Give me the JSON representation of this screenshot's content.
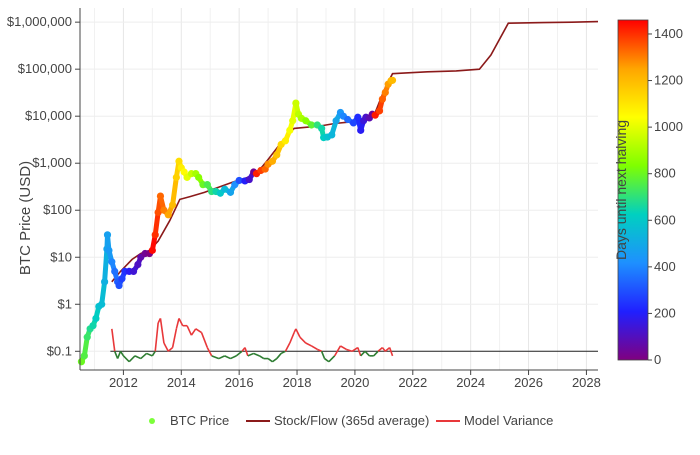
{
  "chart_data": {
    "type": "scatter",
    "title": "",
    "xlabel": "",
    "ylabel": "BTC Price (USD)",
    "y_scale": "log",
    "ylim": [
      0.04,
      2000000
    ],
    "xlim": [
      2010.5,
      2028.4
    ],
    "x_ticks": [
      2012,
      2014,
      2016,
      2018,
      2020,
      2022,
      2024,
      2026,
      2028
    ],
    "x_tick_labels": [
      "2012",
      "2014",
      "2016",
      "2018",
      "2020",
      "2022",
      "2024",
      "2026",
      "2028"
    ],
    "y_ticks": [
      0.1,
      1,
      10,
      100,
      1000,
      10000,
      100000,
      1000000
    ],
    "y_tick_labels": [
      "$0.1",
      "$1",
      "$10",
      "$100",
      "$1,000",
      "$10,000",
      "$100,000",
      "$1,000,000"
    ],
    "grid": true,
    "legend": {
      "position": "bottom-center",
      "entries": [
        "BTC Price",
        "Stock/Flow (365d average)",
        "Model Variance"
      ]
    },
    "colorbar": {
      "label": "Days until next halving",
      "range": [
        0,
        1460
      ],
      "ticks": [
        0,
        200,
        400,
        600,
        800,
        1000,
        1200,
        1400
      ],
      "tick_labels": [
        "0",
        "200",
        "400",
        "600",
        "800",
        "1000",
        "1200",
        "1400"
      ],
      "colors": [
        "#800080",
        "#2020ff",
        "#1e90ff",
        "#00d0c0",
        "#7fff00",
        "#ffff00",
        "#ffa500",
        "#ff0000"
      ]
    },
    "series": [
      {
        "name": "BTC Price",
        "kind": "scatter",
        "color_by": "days_until_next_halving",
        "points": [
          [
            2010.55,
            0.06,
            800
          ],
          [
            2010.65,
            0.08,
            760
          ],
          [
            2010.75,
            0.2,
            720
          ],
          [
            2010.85,
            0.3,
            680
          ],
          [
            2010.95,
            0.35,
            650
          ],
          [
            2011.05,
            0.5,
            620
          ],
          [
            2011.15,
            0.9,
            580
          ],
          [
            2011.25,
            1.0,
            560
          ],
          [
            2011.35,
            3,
            520
          ],
          [
            2011.43,
            15,
            480
          ],
          [
            2011.45,
            30,
            470
          ],
          [
            2011.5,
            14,
            450
          ],
          [
            2011.6,
            8,
            400
          ],
          [
            2011.7,
            5,
            360
          ],
          [
            2011.8,
            3,
            320
          ],
          [
            2011.85,
            2.5,
            300
          ],
          [
            2011.95,
            3.5,
            270
          ],
          [
            2012.05,
            5,
            240
          ],
          [
            2012.2,
            5,
            190
          ],
          [
            2012.35,
            5,
            140
          ],
          [
            2012.5,
            7,
            110
          ],
          [
            2012.6,
            10,
            70
          ],
          [
            2012.75,
            12,
            30
          ],
          [
            2012.9,
            12,
            5
          ],
          [
            2013.0,
            14,
            1450
          ],
          [
            2013.1,
            30,
            1400
          ],
          [
            2013.2,
            90,
            1360
          ],
          [
            2013.28,
            200,
            1330
          ],
          [
            2013.4,
            100,
            1300
          ],
          [
            2013.55,
            80,
            1250
          ],
          [
            2013.7,
            130,
            1200
          ],
          [
            2013.83,
            500,
            1150
          ],
          [
            2013.92,
            1100,
            1120
          ],
          [
            2014.0,
            800,
            1080
          ],
          [
            2014.1,
            650,
            1050
          ],
          [
            2014.2,
            500,
            1000
          ],
          [
            2014.35,
            600,
            950
          ],
          [
            2014.5,
            600,
            900
          ],
          [
            2014.6,
            500,
            850
          ],
          [
            2014.75,
            350,
            800
          ],
          [
            2014.9,
            350,
            750
          ],
          [
            2015.05,
            250,
            700
          ],
          [
            2015.2,
            250,
            650
          ],
          [
            2015.35,
            230,
            600
          ],
          [
            2015.5,
            280,
            550
          ],
          [
            2015.7,
            240,
            480
          ],
          [
            2015.85,
            350,
            420
          ],
          [
            2016.0,
            430,
            300
          ],
          [
            2016.2,
            420,
            200
          ],
          [
            2016.35,
            450,
            120
          ],
          [
            2016.5,
            650,
            30
          ],
          [
            2016.6,
            600,
            1420
          ],
          [
            2016.75,
            700,
            1380
          ],
          [
            2016.9,
            750,
            1330
          ],
          [
            2017.0,
            950,
            1280
          ],
          [
            2017.15,
            1100,
            1230
          ],
          [
            2017.3,
            1500,
            1180
          ],
          [
            2017.45,
            2500,
            1130
          ],
          [
            2017.6,
            3000,
            1080
          ],
          [
            2017.75,
            5000,
            1030
          ],
          [
            2017.85,
            8000,
            1000
          ],
          [
            2017.96,
            19000,
            960
          ],
          [
            2018.05,
            11000,
            930
          ],
          [
            2018.15,
            9000,
            900
          ],
          [
            2018.3,
            8000,
            850
          ],
          [
            2018.5,
            6500,
            780
          ],
          [
            2018.7,
            6500,
            700
          ],
          [
            2018.85,
            5500,
            650
          ],
          [
            2018.92,
            3500,
            620
          ],
          [
            2019.05,
            3600,
            580
          ],
          [
            2019.2,
            4000,
            540
          ],
          [
            2019.35,
            8000,
            490
          ],
          [
            2019.5,
            12000,
            440
          ],
          [
            2019.6,
            10000,
            400
          ],
          [
            2019.75,
            8500,
            350
          ],
          [
            2019.95,
            7200,
            280
          ],
          [
            2020.1,
            9500,
            230
          ],
          [
            2020.2,
            5000,
            190
          ],
          [
            2020.3,
            8000,
            150
          ],
          [
            2020.38,
            9500,
            120
          ],
          [
            2020.5,
            9200,
            80
          ],
          [
            2020.6,
            11000,
            40
          ],
          [
            2020.7,
            10500,
            1430
          ],
          [
            2020.85,
            13000,
            1380
          ],
          [
            2020.95,
            23000,
            1340
          ],
          [
            2021.05,
            32000,
            1300
          ],
          [
            2021.15,
            48000,
            1260
          ],
          [
            2021.25,
            57000,
            1220
          ],
          [
            2021.3,
            58000,
            1200
          ]
        ]
      },
      {
        "name": "Stock/Flow (365d average)",
        "kind": "line",
        "color": "#8b1a1a",
        "points": [
          [
            2011.6,
            3
          ],
          [
            2011.9,
            5
          ],
          [
            2012.3,
            9
          ],
          [
            2012.6,
            12
          ],
          [
            2012.9,
            14
          ],
          [
            2013.2,
            22
          ],
          [
            2013.6,
            60
          ],
          [
            2013.95,
            170
          ],
          [
            2014.3,
            195
          ],
          [
            2014.8,
            240
          ],
          [
            2015.3,
            310
          ],
          [
            2015.8,
            400
          ],
          [
            2016.3,
            500
          ],
          [
            2016.6,
            600
          ],
          [
            2017.0,
            1200
          ],
          [
            2017.5,
            3000
          ],
          [
            2017.9,
            5500
          ],
          [
            2018.3,
            5800
          ],
          [
            2018.8,
            6200
          ],
          [
            2019.3,
            7000
          ],
          [
            2019.8,
            7500
          ],
          [
            2020.3,
            8500
          ],
          [
            2020.7,
            12000
          ],
          [
            2021.0,
            35000
          ],
          [
            2021.3,
            80000
          ],
          [
            2021.6,
            82000
          ],
          [
            2022.5,
            88000
          ],
          [
            2023.5,
            92000
          ],
          [
            2024.3,
            100000
          ],
          [
            2024.7,
            200000
          ],
          [
            2025.3,
            950000
          ],
          [
            2026.5,
            980000
          ],
          [
            2027.5,
            1000000
          ],
          [
            2028.4,
            1030000
          ]
        ]
      },
      {
        "name": "Model Variance",
        "kind": "line",
        "color_above": "#e8383a",
        "color_below": "#2e7d32",
        "baseline": 0.1,
        "points": [
          [
            2011.6,
            0.3
          ],
          [
            2011.7,
            0.1
          ],
          [
            2011.8,
            0.07
          ],
          [
            2011.9,
            0.1
          ],
          [
            2012.0,
            0.08
          ],
          [
            2012.2,
            0.06
          ],
          [
            2012.4,
            0.08
          ],
          [
            2012.6,
            0.07
          ],
          [
            2012.8,
            0.09
          ],
          [
            2013.0,
            0.08
          ],
          [
            2013.1,
            0.1
          ],
          [
            2013.2,
            0.4
          ],
          [
            2013.28,
            0.5
          ],
          [
            2013.4,
            0.15
          ],
          [
            2013.55,
            0.1
          ],
          [
            2013.7,
            0.12
          ],
          [
            2013.83,
            0.3
          ],
          [
            2013.92,
            0.5
          ],
          [
            2014.05,
            0.35
          ],
          [
            2014.2,
            0.35
          ],
          [
            2014.35,
            0.22
          ],
          [
            2014.5,
            0.3
          ],
          [
            2014.7,
            0.25
          ],
          [
            2014.9,
            0.12
          ],
          [
            2015.05,
            0.08
          ],
          [
            2015.3,
            0.07
          ],
          [
            2015.5,
            0.08
          ],
          [
            2015.7,
            0.07
          ],
          [
            2015.9,
            0.08
          ],
          [
            2016.1,
            0.1
          ],
          [
            2016.2,
            0.12
          ],
          [
            2016.3,
            0.08
          ],
          [
            2016.5,
            0.09
          ],
          [
            2016.7,
            0.08
          ],
          [
            2016.85,
            0.07
          ],
          [
            2017.0,
            0.07
          ],
          [
            2017.15,
            0.06
          ],
          [
            2017.3,
            0.07
          ],
          [
            2017.45,
            0.09
          ],
          [
            2017.6,
            0.1
          ],
          [
            2017.75,
            0.15
          ],
          [
            2017.9,
            0.25
          ],
          [
            2017.96,
            0.3
          ],
          [
            2018.1,
            0.2
          ],
          [
            2018.3,
            0.15
          ],
          [
            2018.5,
            0.13
          ],
          [
            2018.7,
            0.11
          ],
          [
            2018.85,
            0.1
          ],
          [
            2018.95,
            0.07
          ],
          [
            2019.1,
            0.06
          ],
          [
            2019.3,
            0.08
          ],
          [
            2019.5,
            0.13
          ],
          [
            2019.7,
            0.11
          ],
          [
            2019.9,
            0.1
          ],
          [
            2020.1,
            0.12
          ],
          [
            2020.2,
            0.08
          ],
          [
            2020.35,
            0.1
          ],
          [
            2020.5,
            0.08
          ],
          [
            2020.65,
            0.08
          ],
          [
            2020.8,
            0.1
          ],
          [
            2020.95,
            0.12
          ],
          [
            2021.05,
            0.1
          ],
          [
            2021.2,
            0.12
          ],
          [
            2021.3,
            0.08
          ]
        ]
      }
    ]
  }
}
